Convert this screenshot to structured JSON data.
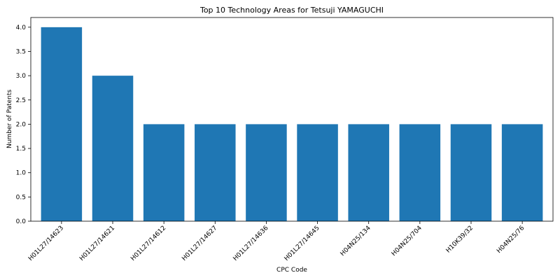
{
  "chart_data": {
    "type": "bar",
    "title": "Top 10 Technology Areas for Tetsuji YAMAGUCHI",
    "xlabel": "CPC Code",
    "ylabel": "Number of Patents",
    "categories": [
      "H01L27/14623",
      "H01L27/14621",
      "H01L27/14612",
      "H01L27/14627",
      "H01L27/14636",
      "H01L27/14645",
      "H04N25/134",
      "H04N25/704",
      "H10K39/32",
      "H04N25/76"
    ],
    "values": [
      4,
      3,
      2,
      2,
      2,
      2,
      2,
      2,
      2,
      2
    ],
    "ylim": [
      0,
      4.2
    ],
    "yticks": [
      "0.0",
      "0.5",
      "1.0",
      "1.5",
      "2.0",
      "2.5",
      "3.0",
      "3.5",
      "4.0"
    ],
    "grid": false,
    "bar_color": "#1f77b4"
  }
}
